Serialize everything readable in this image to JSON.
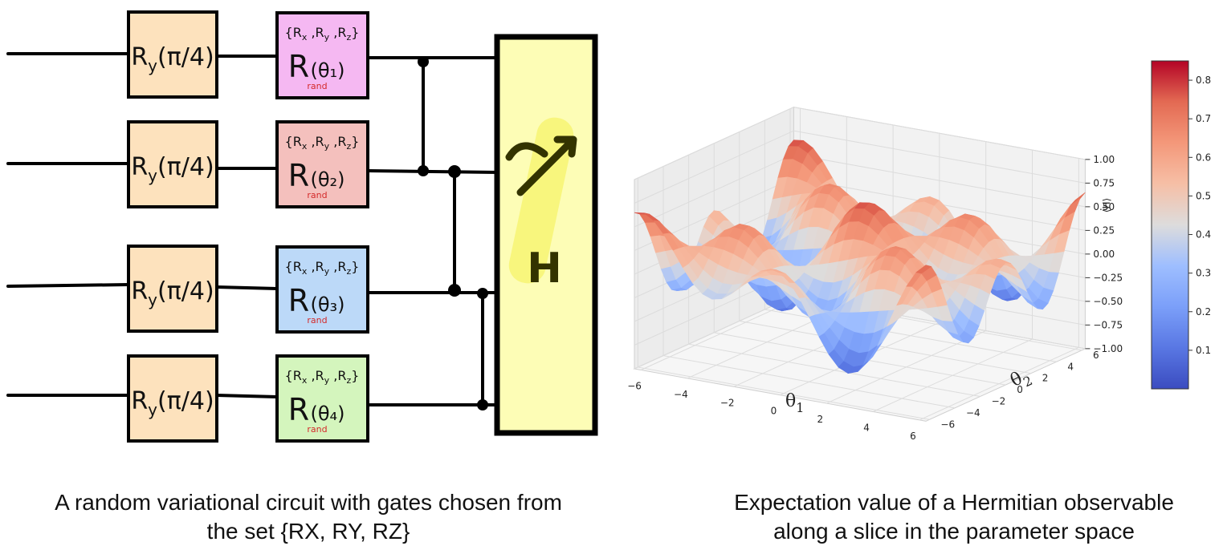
{
  "circuit": {
    "ry_gate": {
      "name": "R",
      "sub": "y"
    },
    "ry_angles": [
      "π/4",
      "π/4",
      "π/4",
      "π/4"
    ],
    "rand_gate": {
      "set": "{Rₓ , R_y , R_z}",
      "set_items": [
        "R",
        "x",
        "R",
        "y",
        "R",
        "z"
      ],
      "name": "R",
      "sub": "rand",
      "thetas": [
        "θ₁",
        "θ₂",
        "θ₃",
        "θ₄"
      ]
    },
    "rand_colors": [
      "#f5b8f2",
      "#f4c0bd",
      "#bcd9f8",
      "#d4f5bd"
    ],
    "ry_color": "#fde2bd",
    "measure": {
      "label": "H",
      "color": "#fdfdb6"
    }
  },
  "chart_data": {
    "type": "surface",
    "title": "",
    "xlabel": "θ1",
    "ylabel": "θ2",
    "zlabel": "⟨H⟩",
    "x_ticks": [
      "−6",
      "−4",
      "−2",
      "0",
      "2",
      "4",
      "6"
    ],
    "y_ticks": [
      "−6",
      "−4",
      "−2",
      "0",
      "2",
      "4",
      "6"
    ],
    "z_ticks": [
      "−1.00",
      "−0.75",
      "−0.50",
      "−0.25",
      "0.00",
      "0.25",
      "0.50",
      "0.75",
      "1.00"
    ],
    "xlim": [
      -6.28,
      6.28
    ],
    "ylim": [
      -6.28,
      6.28
    ],
    "zlim": [
      -1.0,
      1.0
    ],
    "colormap": "coolwarm",
    "colorbar_ticks": [
      "0.1",
      "0.2",
      "0.3",
      "0.4",
      "0.5",
      "0.6",
      "0.7",
      "0.8"
    ],
    "colorbar_range": [
      0.0,
      0.85
    ]
  },
  "captions": {
    "left_line1": "A random variational circuit with gates chosen from",
    "left_line2": "the set {RX, RY, RZ}",
    "right_line1": "Expectation value of a Hermitian observable",
    "right_line2": "along a slice in the parameter space"
  }
}
